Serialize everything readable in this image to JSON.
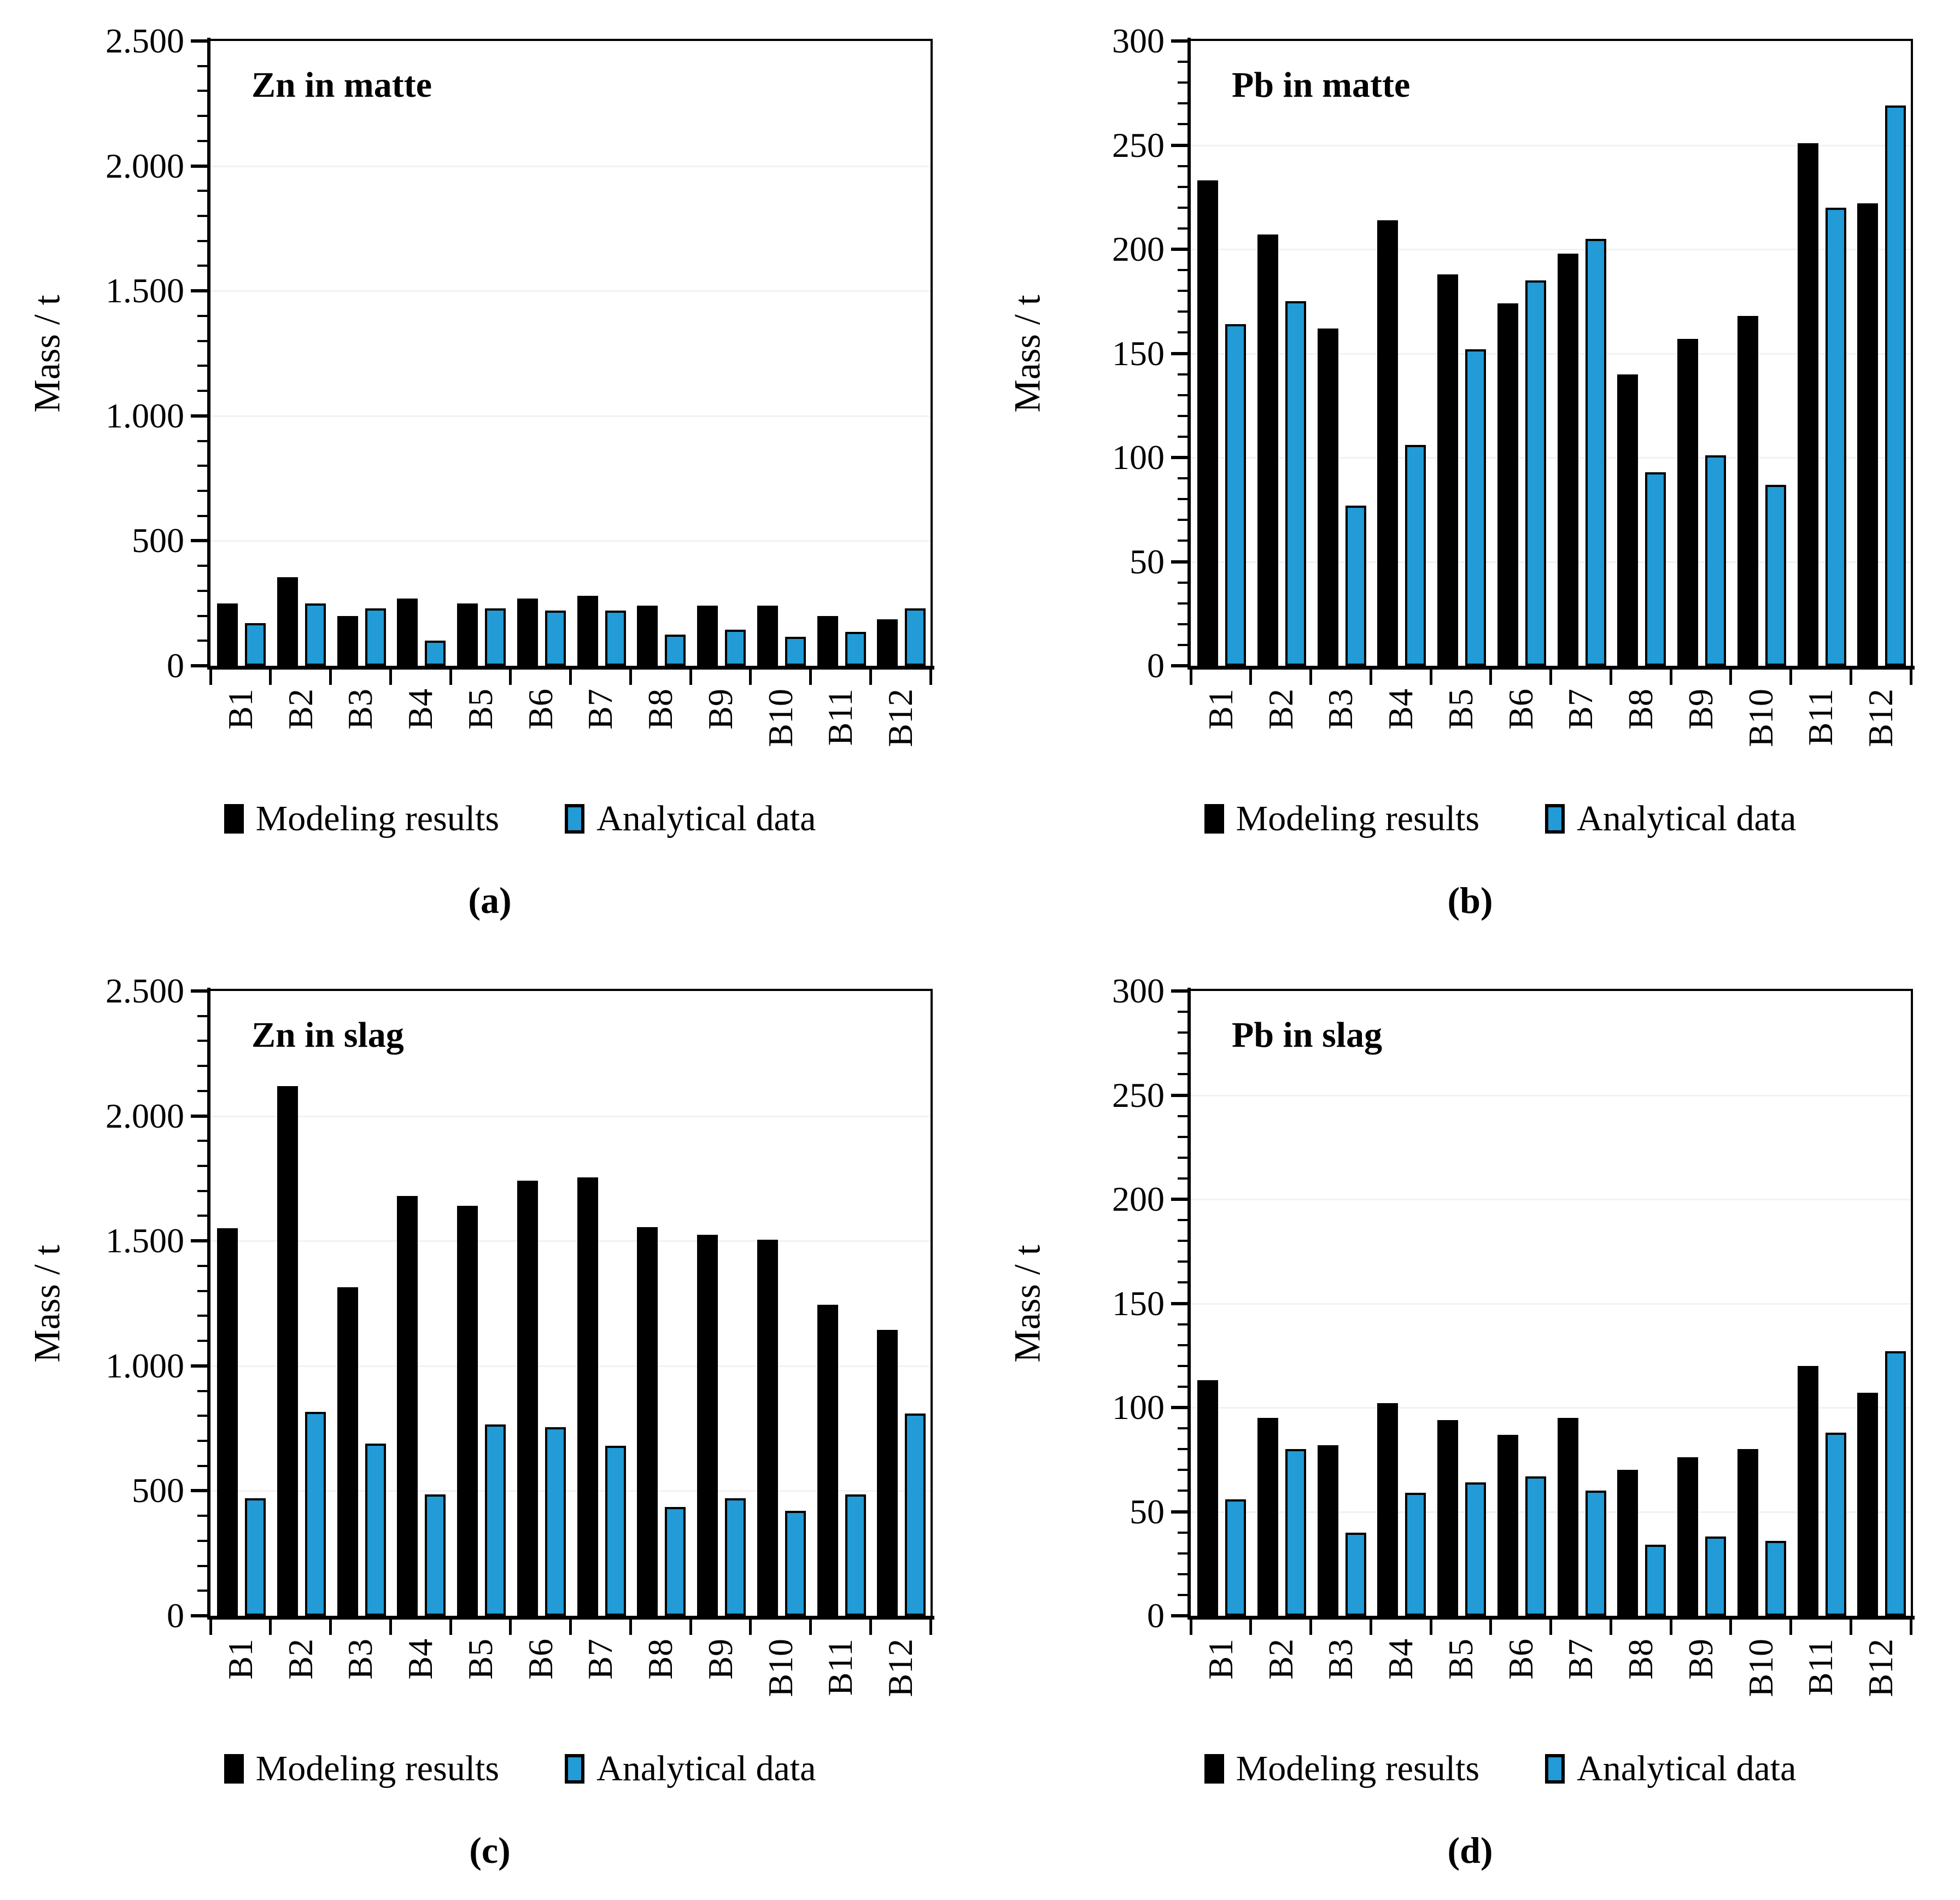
{
  "figure": {
    "background": "#FFFFFF",
    "series_names": [
      "Modeling results",
      "Analytical data"
    ],
    "colors": {
      "modeling_bar": "#000000",
      "analytical_bar_fill": "#229BD6",
      "analytical_bar_border": "#000000",
      "gridline": "#F2F2F2",
      "axis": "#000000"
    }
  },
  "chart_data": [
    {
      "id": "a",
      "type": "bar",
      "title": "Zn in matte",
      "panel_label": "(a)",
      "xlabel": "",
      "ylabel": "Mass / t",
      "ylim": [
        0,
        2500
      ],
      "ytick_step": 500,
      "yminor_step": 100,
      "grid": true,
      "legend_position": "bottom",
      "ytick_labels": [
        "0",
        "500",
        "1.000",
        "1.500",
        "2.000",
        "2.500"
      ],
      "categories": [
        "B1",
        "B2",
        "B3",
        "B4",
        "B5",
        "B6",
        "B7",
        "B8",
        "B9",
        "B10",
        "B11",
        "B12"
      ],
      "series": [
        {
          "name": "Modeling results",
          "values": [
            250,
            355,
            200,
            270,
            250,
            270,
            280,
            240,
            240,
            240,
            200,
            185
          ]
        },
        {
          "name": "Analytical data",
          "values": [
            170,
            250,
            230,
            100,
            230,
            220,
            220,
            125,
            145,
            115,
            135,
            230
          ]
        }
      ]
    },
    {
      "id": "b",
      "type": "bar",
      "title": "Pb in matte",
      "panel_label": "(b)",
      "xlabel": "",
      "ylabel": "Mass / t",
      "ylim": [
        0,
        300
      ],
      "ytick_step": 50,
      "yminor_step": 10,
      "grid": true,
      "legend_position": "bottom",
      "ytick_labels": [
        "0",
        "50",
        "100",
        "150",
        "200",
        "250",
        "300"
      ],
      "categories": [
        "B1",
        "B2",
        "B3",
        "B4",
        "B5",
        "B6",
        "B7",
        "B8",
        "B9",
        "B10",
        "B11",
        "B12"
      ],
      "series": [
        {
          "name": "Modeling results",
          "values": [
            233,
            207,
            162,
            214,
            188,
            174,
            198,
            140,
            157,
            168,
            251,
            222
          ]
        },
        {
          "name": "Analytical data",
          "values": [
            164,
            175,
            77,
            106,
            152,
            185,
            205,
            93,
            101,
            87,
            220,
            269
          ]
        }
      ]
    },
    {
      "id": "c",
      "type": "bar",
      "title": "Zn in slag",
      "panel_label": "(c)",
      "xlabel": "",
      "ylabel": "Mass / t",
      "ylim": [
        0,
        2500
      ],
      "ytick_step": 500,
      "yminor_step": 100,
      "grid": true,
      "legend_position": "bottom",
      "ytick_labels": [
        "0",
        "500",
        "1.000",
        "1.500",
        "2.000",
        "2.500"
      ],
      "categories": [
        "B1",
        "B2",
        "B3",
        "B4",
        "B5",
        "B6",
        "B7",
        "B8",
        "B9",
        "B10",
        "B11",
        "B12"
      ],
      "series": [
        {
          "name": "Modeling results",
          "values": [
            1550,
            2120,
            1315,
            1680,
            1640,
            1740,
            1755,
            1555,
            1525,
            1505,
            1245,
            1145
          ]
        },
        {
          "name": "Analytical data",
          "values": [
            470,
            815,
            690,
            485,
            765,
            755,
            680,
            435,
            470,
            420,
            485,
            810
          ]
        }
      ]
    },
    {
      "id": "d",
      "type": "bar",
      "title": "Pb in slag",
      "panel_label": "(d)",
      "xlabel": "",
      "ylabel": "Mass / t",
      "ylim": [
        0,
        300
      ],
      "ytick_step": 50,
      "yminor_step": 10,
      "grid": true,
      "legend_position": "bottom",
      "ytick_labels": [
        "0",
        "50",
        "100",
        "150",
        "200",
        "250",
        "300"
      ],
      "categories": [
        "B1",
        "B2",
        "B3",
        "B4",
        "B5",
        "B6",
        "B7",
        "B8",
        "B9",
        "B10",
        "B11",
        "B12"
      ],
      "series": [
        {
          "name": "Modeling results",
          "values": [
            113,
            95,
            82,
            102,
            94,
            87,
            95,
            70,
            76,
            80,
            120,
            107
          ]
        },
        {
          "name": "Analytical data",
          "values": [
            56,
            80,
            40,
            59,
            64,
            67,
            60,
            34,
            38,
            36,
            88,
            127
          ]
        }
      ]
    }
  ]
}
